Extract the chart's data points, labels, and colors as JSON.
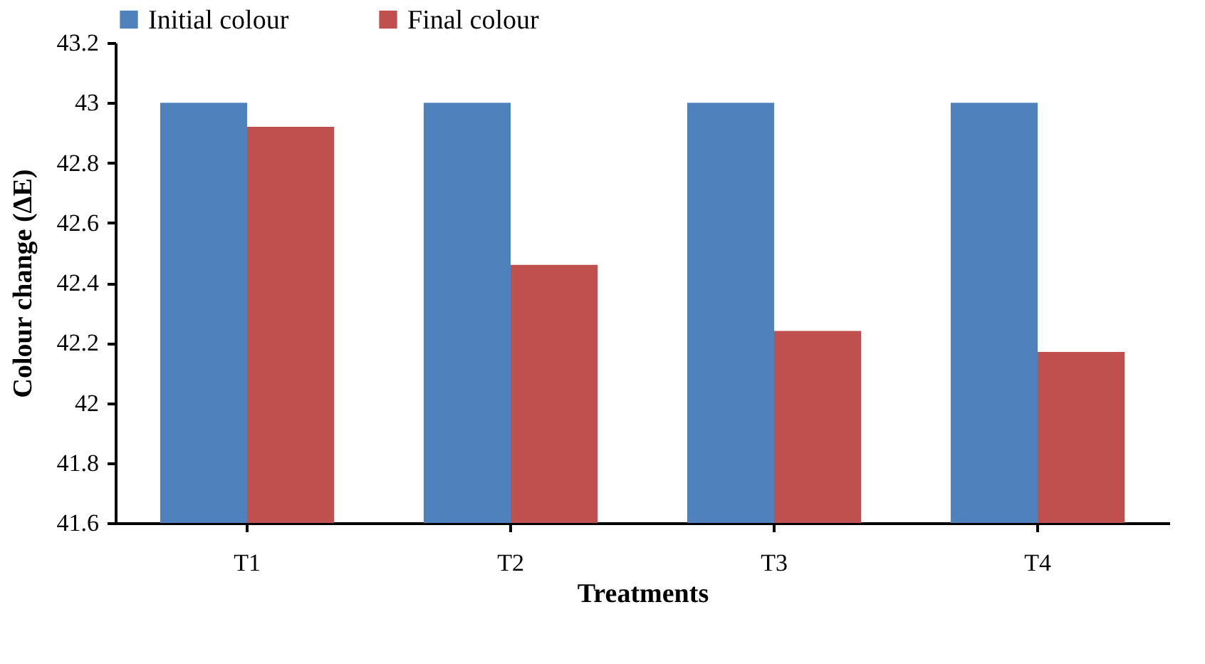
{
  "chart_data": {
    "type": "bar",
    "xlabel": "Treatments",
    "ylabel": "Colour change (ΔE)",
    "categories": [
      "T1",
      "T2",
      "T3",
      "T4"
    ],
    "series": [
      {
        "name": "Initial colour",
        "color": "#4f81bd",
        "values": [
          43,
          43,
          43,
          43
        ]
      },
      {
        "name": "Final colour",
        "color": "#c0504d",
        "values": [
          42.92,
          42.46,
          42.24,
          42.17
        ]
      }
    ],
    "ylim": [
      41.6,
      43.2
    ],
    "yticks": [
      41.6,
      41.8,
      42,
      42.2,
      42.4,
      42.6,
      42.8,
      43,
      43.2
    ],
    "grid": false,
    "legend": "top"
  }
}
